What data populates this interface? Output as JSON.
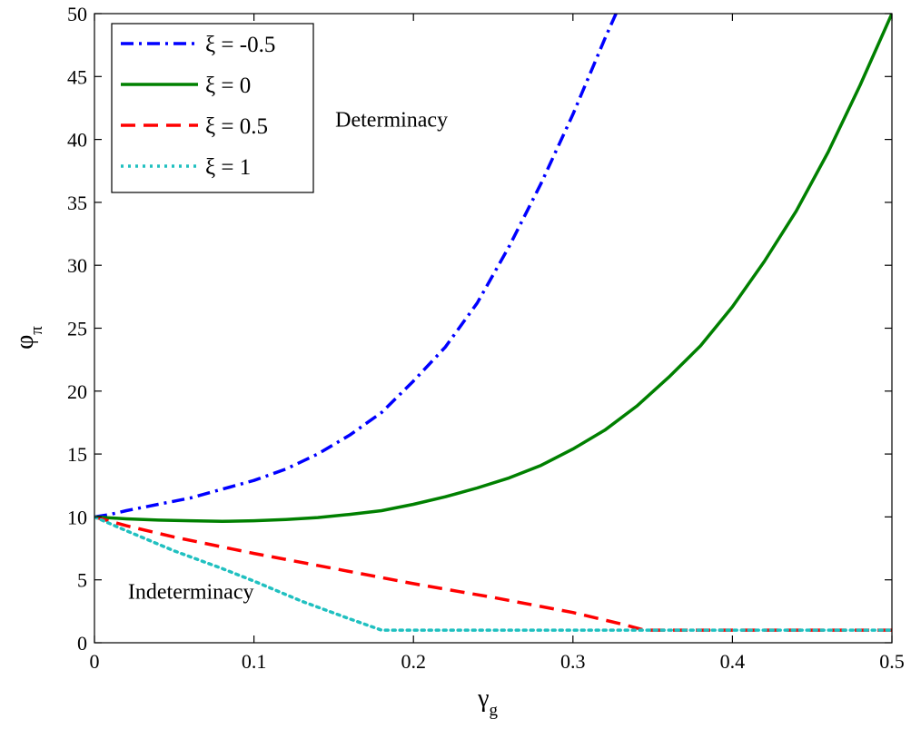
{
  "chart_data": {
    "type": "line",
    "xlabel": {
      "main": "γ",
      "sub": "g"
    },
    "ylabel": {
      "main": "φ",
      "sub": "π"
    },
    "xlim": [
      0,
      0.5
    ],
    "ylim": [
      0,
      50
    ],
    "xticks": [
      0,
      0.1,
      0.2,
      0.3,
      0.4,
      0.5
    ],
    "xtick_labels": [
      "0",
      "0.1",
      "0.2",
      "0.3",
      "0.4",
      "0.5"
    ],
    "yticks": [
      0,
      5,
      10,
      15,
      20,
      25,
      30,
      35,
      40,
      45,
      50
    ],
    "ytick_labels": [
      "0",
      "5",
      "10",
      "15",
      "20",
      "25",
      "30",
      "35",
      "40",
      "45",
      "50"
    ],
    "grid": false,
    "legend_position": "top-left",
    "annotations": [
      {
        "text": "Determinacy",
        "x": 0.151,
        "y": 41
      },
      {
        "text": "Indeterminacy",
        "x": 0.021,
        "y": 3.5
      }
    ],
    "series": [
      {
        "name": "ξ = -0.5",
        "color": "#0000ff",
        "dash": "dashdot",
        "x": [
          0,
          0.01,
          0.02,
          0.04,
          0.06,
          0.08,
          0.1,
          0.12,
          0.14,
          0.16,
          0.18,
          0.2,
          0.22,
          0.24,
          0.26,
          0.28,
          0.3,
          0.32,
          0.327
        ],
        "y": [
          10,
          10.2,
          10.5,
          11.0,
          11.5,
          12.2,
          12.9,
          13.8,
          15.0,
          16.5,
          18.3,
          20.8,
          23.5,
          27.0,
          31.5,
          36.5,
          42.0,
          48.0,
          50.0
        ]
      },
      {
        "name": "ξ = 0",
        "color": "#008000",
        "dash": "solid",
        "x": [
          0,
          0.02,
          0.04,
          0.06,
          0.08,
          0.1,
          0.12,
          0.14,
          0.16,
          0.18,
          0.2,
          0.22,
          0.24,
          0.26,
          0.28,
          0.3,
          0.32,
          0.34,
          0.36,
          0.38,
          0.4,
          0.42,
          0.44,
          0.46,
          0.48,
          0.5
        ],
        "y": [
          10,
          9.85,
          9.75,
          9.7,
          9.65,
          9.7,
          9.8,
          9.95,
          10.2,
          10.5,
          11.0,
          11.6,
          12.3,
          13.1,
          14.1,
          15.4,
          16.9,
          18.8,
          21.1,
          23.6,
          26.7,
          30.3,
          34.3,
          39.0,
          44.3,
          50.0
        ]
      },
      {
        "name": "ξ = 0.5",
        "color": "#ff0000",
        "dash": "dashed",
        "x": [
          0,
          0.02,
          0.05,
          0.1,
          0.15,
          0.2,
          0.25,
          0.3,
          0.33,
          0.345,
          0.4,
          0.45,
          0.5
        ],
        "y": [
          10,
          9.3,
          8.4,
          7.1,
          5.9,
          4.7,
          3.6,
          2.4,
          1.5,
          1.0,
          1.0,
          1.0,
          1.0
        ]
      },
      {
        "name": "ξ = 1",
        "color": "#20c0c0",
        "dash": "dotted",
        "x": [
          0,
          0.02,
          0.05,
          0.08,
          0.1,
          0.13,
          0.16,
          0.18,
          0.25,
          0.3,
          0.4,
          0.5
        ],
        "y": [
          10,
          8.9,
          7.3,
          5.9,
          4.9,
          3.3,
          1.9,
          1.0,
          1.0,
          1.0,
          1.0,
          1.0
        ]
      }
    ]
  }
}
